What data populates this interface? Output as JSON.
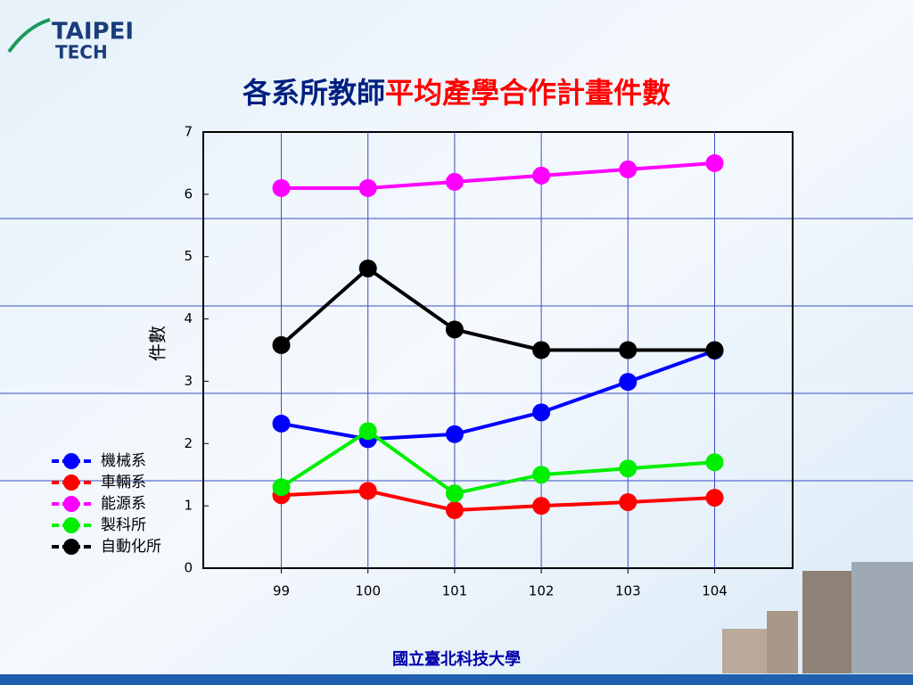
{
  "logo": {
    "line1": "TAIPEI",
    "line2": "TECH"
  },
  "chart_data": {
    "type": "line",
    "title": [
      "各系所教師",
      "平均產學合作計畫件數"
    ],
    "y_label": "件數",
    "x": [
      99,
      100,
      101,
      102,
      103,
      104
    ],
    "xlim": [
      98.1,
      104.9
    ],
    "xticks": [
      99,
      100,
      101,
      102,
      103,
      104
    ],
    "ylim": [
      0,
      7
    ],
    "yticks": [
      0,
      1,
      2,
      3,
      4,
      5,
      6,
      7
    ],
    "grid": "x",
    "legend": "left",
    "series": [
      {
        "name": "機械系",
        "color": "#0000ff",
        "values": [
          2.32,
          2.07,
          2.15,
          2.5,
          2.99,
          3.49
        ]
      },
      {
        "name": "車輛系",
        "color": "#ff0000",
        "values": [
          1.17,
          1.24,
          0.93,
          1.0,
          1.06,
          1.13
        ]
      },
      {
        "name": "能源系",
        "color": "#ff00ff",
        "values": [
          6.1,
          6.1,
          6.2,
          6.3,
          6.4,
          6.5
        ]
      },
      {
        "name": "製科所",
        "color": "#00ee00",
        "values": [
          1.3,
          2.2,
          1.2,
          1.5,
          1.6,
          1.7
        ]
      },
      {
        "name": "自動化所",
        "color": "#000000",
        "values": [
          3.58,
          4.81,
          3.83,
          3.5,
          3.5,
          3.5
        ]
      }
    ]
  },
  "footer": "國立臺北科技大學"
}
